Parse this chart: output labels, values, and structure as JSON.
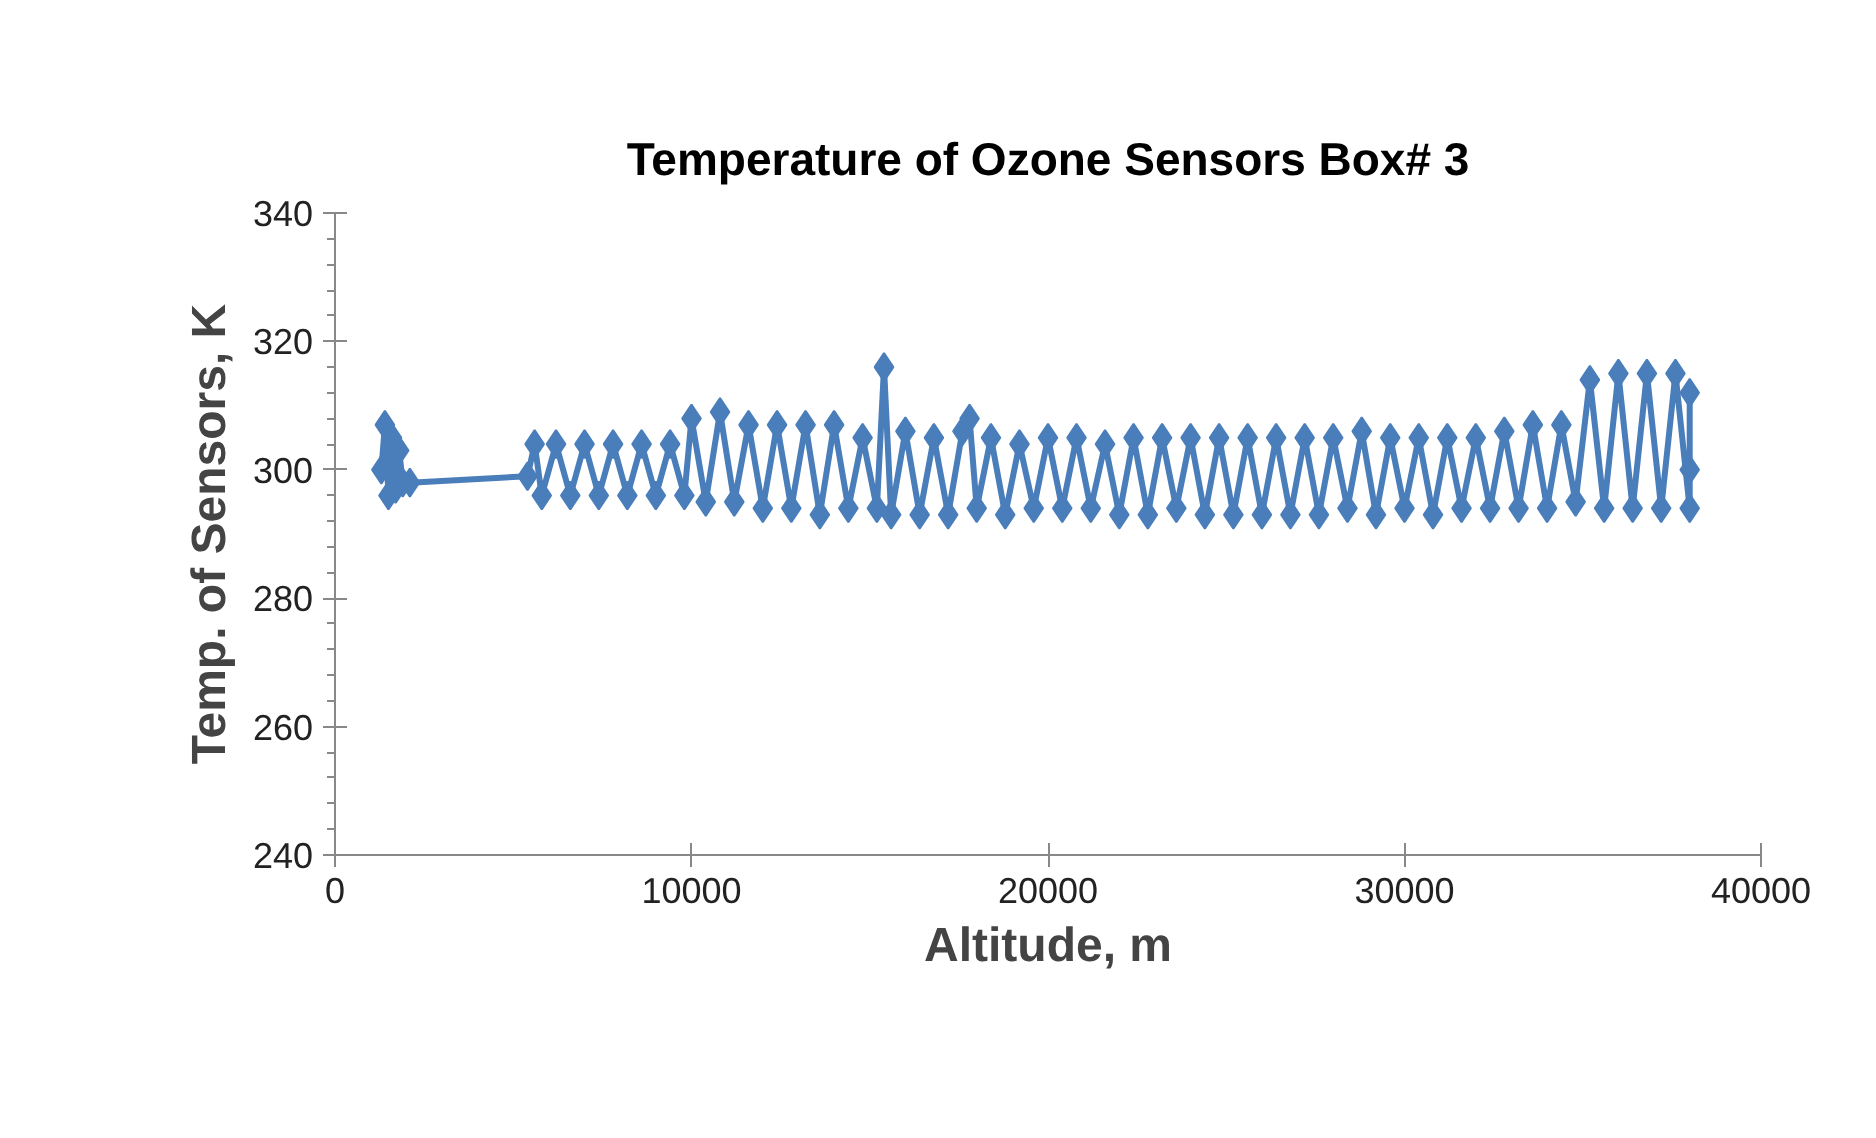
{
  "chart_data": {
    "type": "line",
    "title": "Temperature of Ozone Sensors Box# 3",
    "xlabel": "Altitude, m",
    "ylabel": "Temp. of Sensors, K",
    "marker": "diamond",
    "line_style": "solid",
    "grid": false,
    "xlim": [
      0,
      40000
    ],
    "xticks": [
      0,
      10000,
      20000,
      30000,
      40000
    ],
    "ylim": [
      240,
      340
    ],
    "yticks": [
      240,
      {
        "value": 244,
        "label": null
      },
      {
        "value": 248,
        "label": null
      },
      {
        "value": 252,
        "label": null
      },
      {
        "value": 256,
        "label": null
      },
      260,
      {
        "value": 264,
        "label": null
      },
      {
        "value": 268,
        "label": null
      },
      {
        "value": 272,
        "label": null
      },
      {
        "value": 276,
        "label": null
      },
      280,
      {
        "value": 284,
        "label": null
      },
      {
        "value": 288,
        "label": null
      },
      {
        "value": 292,
        "label": null
      },
      {
        "value": 296,
        "label": null
      },
      300,
      {
        "value": 304,
        "label": null
      },
      {
        "value": 308,
        "label": null
      },
      {
        "value": 312,
        "label": null
      },
      {
        "value": 316,
        "label": null
      },
      320,
      {
        "value": 324,
        "label": null
      },
      {
        "value": 328,
        "label": null
      },
      {
        "value": 332,
        "label": null
      },
      {
        "value": 336,
        "label": null
      },
      340
    ],
    "series": [
      {
        "color": "#4a7ebb",
        "x": [
          1300,
          1400,
          1500,
          1600,
          1700,
          1800,
          1900,
          2100,
          5400,
          5600,
          5800,
          6200,
          6600,
          7000,
          7400,
          7800,
          8200,
          8600,
          9000,
          9400,
          9800,
          10000,
          10400,
          10800,
          11200,
          11600,
          12000,
          12400,
          12800,
          13200,
          13600,
          14000,
          14400,
          14800,
          15200,
          15400,
          15600,
          16000,
          16400,
          16800,
          17200,
          17600,
          17800,
          18000,
          18400,
          18800,
          19200,
          19600,
          20000,
          20400,
          20800,
          21200,
          21600,
          22000,
          22400,
          22800,
          23200,
          23600,
          24000,
          24400,
          24800,
          25200,
          25600,
          26000,
          26400,
          26800,
          27200,
          27600,
          28000,
          28400,
          28800,
          29200,
          29600,
          30000,
          30400,
          30800,
          31200,
          31600,
          32000,
          32400,
          32800,
          33200,
          33600,
          34000,
          34400,
          34800,
          35200,
          35600,
          36000,
          36400,
          36800,
          37200,
          37600,
          38000,
          38000,
          38000
        ],
        "values": [
          300,
          307,
          296,
          305,
          297,
          303,
          298,
          298,
          299,
          304,
          296,
          304,
          296,
          304,
          296,
          304,
          296,
          304,
          296,
          304,
          296,
          308,
          295,
          309,
          295,
          307,
          294,
          307,
          294,
          307,
          293,
          307,
          294,
          305,
          294,
          316,
          293,
          306,
          293,
          305,
          293,
          306,
          308,
          294,
          305,
          293,
          304,
          294,
          305,
          294,
          305,
          294,
          304,
          293,
          305,
          293,
          305,
          294,
          305,
          293,
          305,
          293,
          305,
          293,
          305,
          293,
          305,
          293,
          305,
          294,
          306,
          293,
          305,
          294,
          305,
          293,
          305,
          294,
          305,
          294,
          306,
          294,
          307,
          294,
          307,
          295,
          314,
          294,
          315,
          294,
          315,
          294,
          315,
          294,
          312,
          300
        ]
      }
    ]
  }
}
